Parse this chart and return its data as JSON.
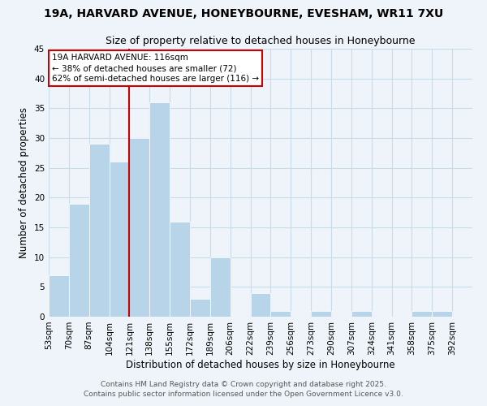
{
  "title": "19A, HARVARD AVENUE, HONEYBOURNE, EVESHAM, WR11 7XU",
  "subtitle": "Size of property relative to detached houses in Honeybourne",
  "xlabel": "Distribution of detached houses by size in Honeybourne",
  "ylabel": "Number of detached properties",
  "bin_labels": [
    "53sqm",
    "70sqm",
    "87sqm",
    "104sqm",
    "121sqm",
    "138sqm",
    "155sqm",
    "172sqm",
    "189sqm",
    "206sqm",
    "222sqm",
    "239sqm",
    "256sqm",
    "273sqm",
    "290sqm",
    "307sqm",
    "324sqm",
    "341sqm",
    "358sqm",
    "375sqm",
    "392sqm"
  ],
  "bar_heights": [
    7,
    19,
    29,
    26,
    30,
    36,
    16,
    3,
    10,
    0,
    4,
    1,
    0,
    1,
    0,
    1,
    0,
    0,
    1,
    1,
    0
  ],
  "bar_color": "#b8d4e8",
  "bar_edge_color": "#ffffff",
  "grid_color": "#c8dce8",
  "background_color": "#eef4fa",
  "vline_x": 4,
  "vline_color": "#cc0000",
  "annotation_title": "19A HARVARD AVENUE: 116sqm",
  "annotation_line1": "← 38% of detached houses are smaller (72)",
  "annotation_line2": "62% of semi-detached houses are larger (116) →",
  "annotation_box_color": "#ffffff",
  "annotation_box_edge": "#cc0000",
  "footer1": "Contains HM Land Registry data © Crown copyright and database right 2025.",
  "footer2": "Contains public sector information licensed under the Open Government Licence v3.0.",
  "ylim": [
    0,
    45
  ],
  "title_fontsize": 10,
  "subtitle_fontsize": 9,
  "xlabel_fontsize": 8.5,
  "ylabel_fontsize": 8.5,
  "tick_fontsize": 7.5,
  "footer_fontsize": 6.5,
  "ann_fontsize": 7.5
}
